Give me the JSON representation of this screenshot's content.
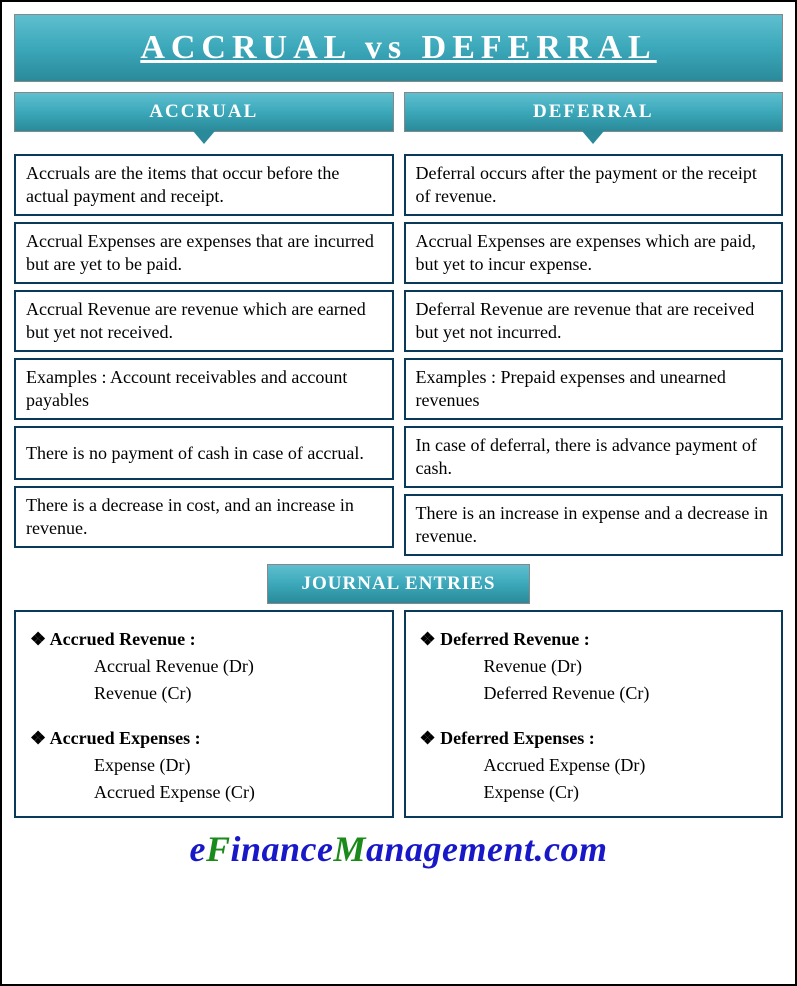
{
  "colors": {
    "banner_gradient_top": "#5fbfcf",
    "banner_gradient_mid": "#3ba8ba",
    "banner_gradient_bot": "#2a8a9a",
    "cell_border": "#0a3a5a",
    "outer_border": "#000000",
    "text": "#000000",
    "header_text": "#ffffff",
    "logo_blue": "#1818c8",
    "logo_green": "#1a8a1a",
    "background": "#ffffff"
  },
  "typography": {
    "title_fontsize": 34,
    "title_letter_spacing": 6,
    "header_fontsize": 19,
    "cell_fontsize": 18,
    "logo_fontsize": 36,
    "font_family": "Garamond"
  },
  "title": "ACCRUAL vs DEFERRAL",
  "left": {
    "header": "ACCRUAL",
    "rows": [
      "Accruals are the items that occur before the actual payment and receipt.",
      "Accrual Expenses are expenses that are incurred but are yet to be paid.",
      "Accrual Revenue are revenue which are earned but yet not received.",
      "Examples : Account receivables and account payables",
      "There is no payment of cash in case of accrual.",
      "There is a decrease in cost, and an increase in revenue."
    ],
    "journal": {
      "group1": {
        "heading": "Accrued Revenue :",
        "line1": "Accrual Revenue (Dr)",
        "line2": "Revenue (Cr)"
      },
      "group2": {
        "heading": "Accrued Expenses :",
        "line1": "Expense (Dr)",
        "line2": "Accrued Expense (Cr)"
      }
    }
  },
  "right": {
    "header": "DEFERRAL",
    "rows": [
      "Deferral occurs after the payment or the receipt of revenue.",
      "Accrual Expenses are expenses which are paid, but yet to incur expense.",
      "Deferral Revenue are revenue that are received but yet not incurred.",
      "Examples : Prepaid expenses and unearned revenues",
      "In case of deferral, there is advance payment of cash.",
      "There is an increase in expense and a decrease in revenue."
    ],
    "journal": {
      "group1": {
        "heading": "Deferred Revenue :",
        "line1": "Revenue (Dr)",
        "line2": "Deferred Revenue (Cr)"
      },
      "group2": {
        "heading": "Deferred Expenses :",
        "line1": "Accrued Expense (Dr)",
        "line2": "Expense (Cr)"
      }
    }
  },
  "section_header": "JOURNAL ENTRIES",
  "logo": {
    "part1": "e",
    "part2": "F",
    "part3": "inance",
    "part4": "M",
    "part5": "anagement.com"
  }
}
